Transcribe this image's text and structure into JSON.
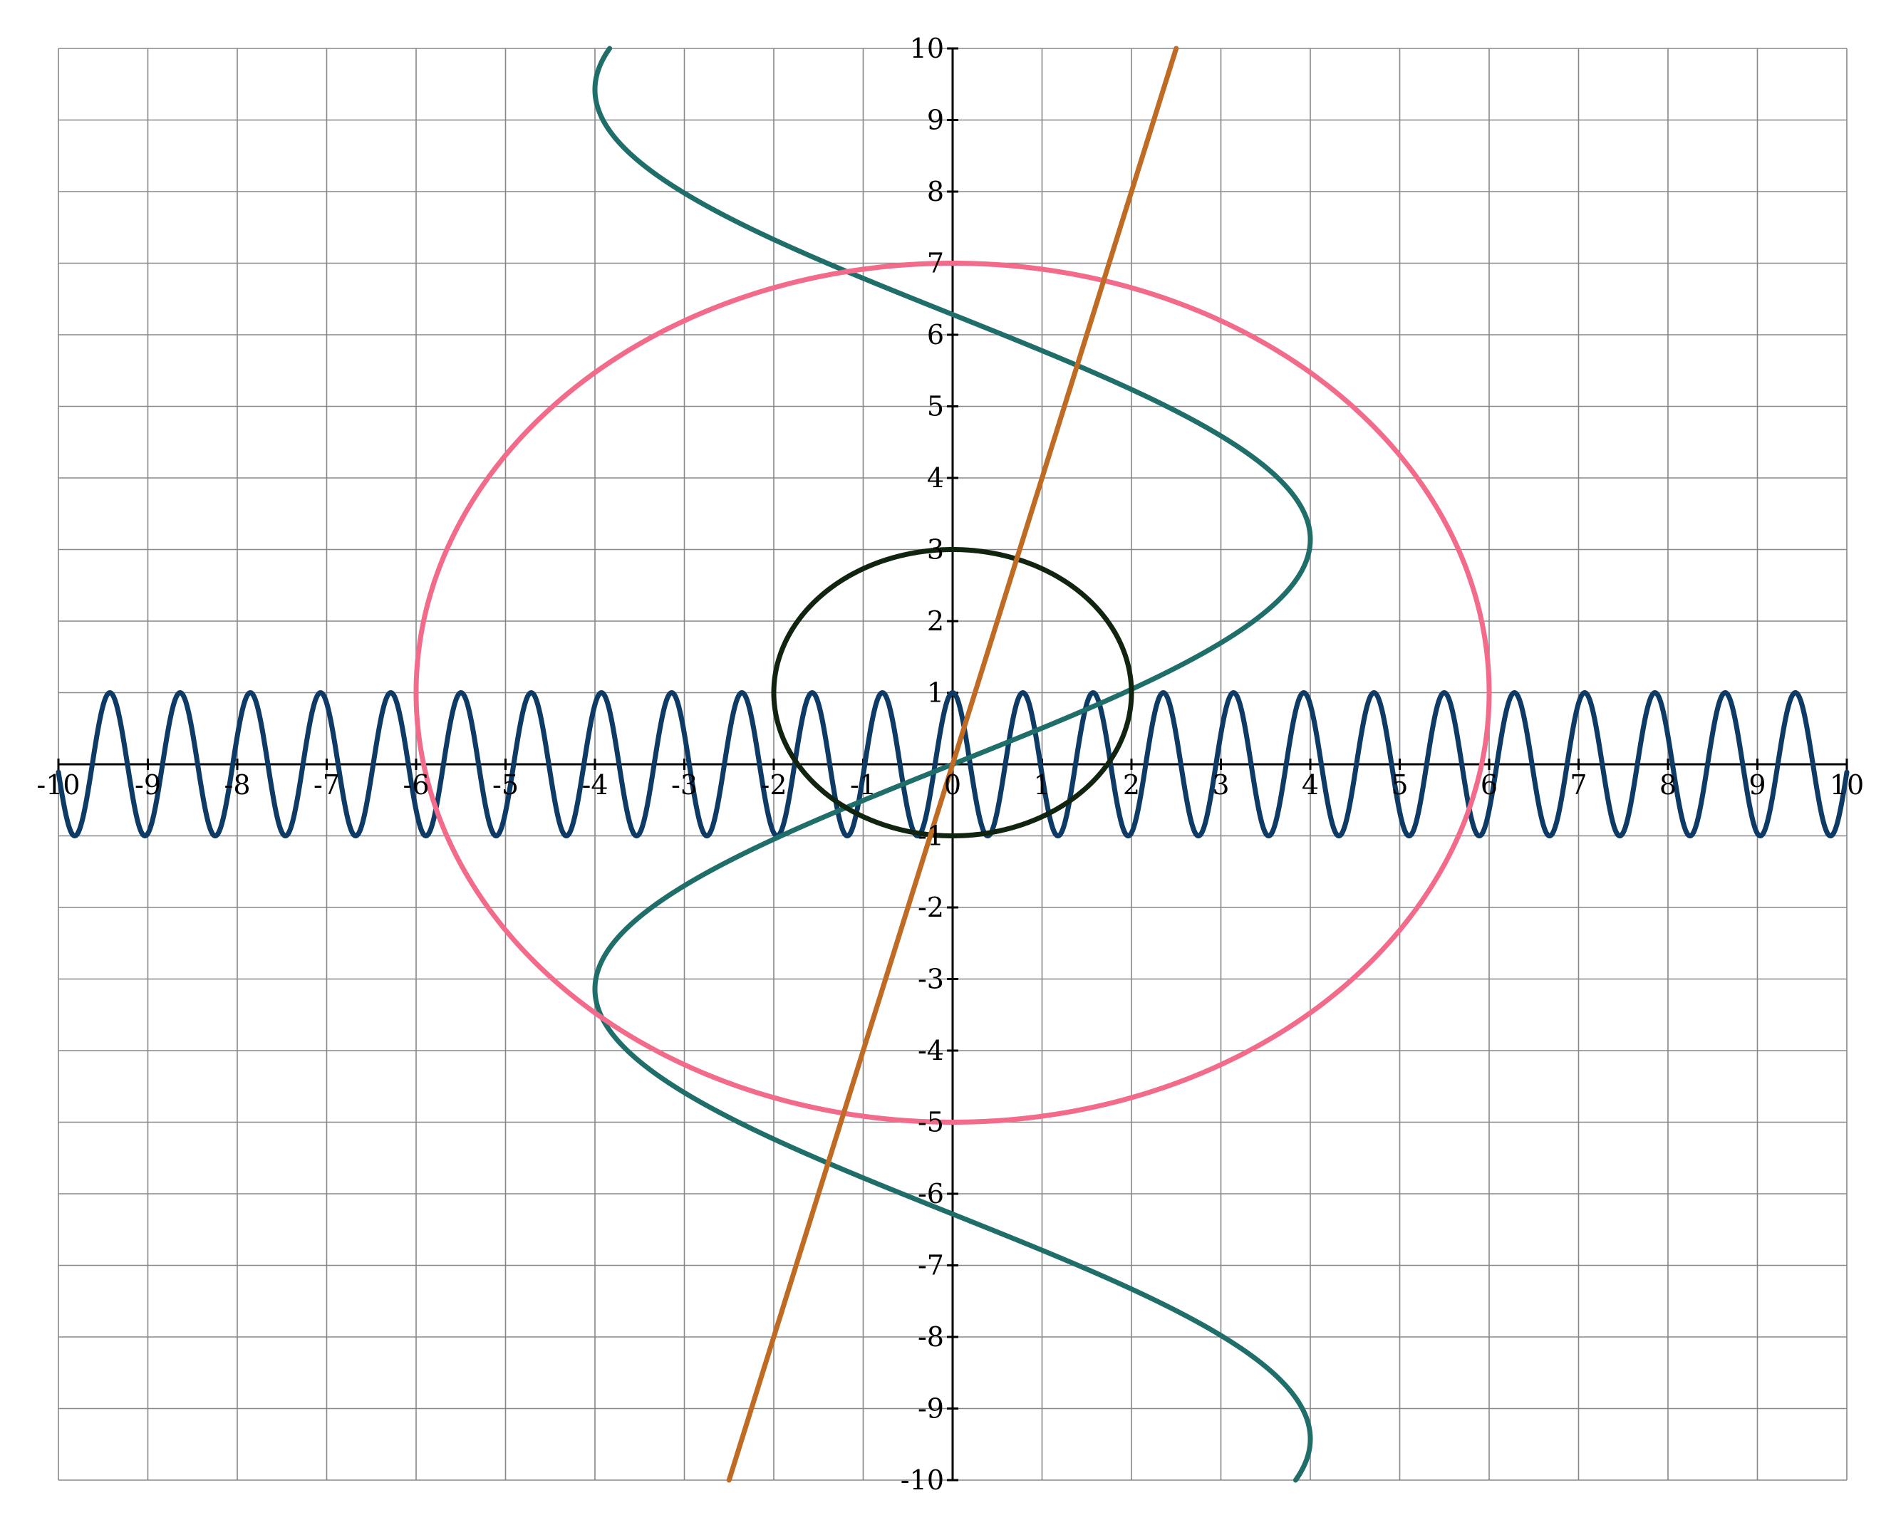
{
  "chart_data": {
    "type": "line",
    "title": "",
    "xlabel": "",
    "ylabel": "",
    "xlim": [
      -10,
      10
    ],
    "ylim": [
      -10,
      10
    ],
    "grid": true,
    "x_ticks": [
      "-10",
      "-9",
      "-8",
      "-7",
      "-6",
      "-5",
      "-4",
      "-3",
      "-2",
      "-1",
      "0",
      "1",
      "2",
      "3",
      "4",
      "5",
      "6",
      "7",
      "8",
      "9",
      "10"
    ],
    "y_ticks": [
      "-10",
      "-9",
      "-8",
      "-7",
      "-6",
      "-5",
      "-4",
      "-3",
      "-2",
      "-1",
      "0",
      "1",
      "2",
      "3",
      "4",
      "5",
      "6",
      "7",
      "8",
      "9",
      "10"
    ],
    "series": [
      {
        "kind": "function",
        "equation": "y = cos(8x)",
        "color": "#0d3b66",
        "x_range": [
          -10,
          10
        ]
      },
      {
        "kind": "inverse_function",
        "equation": "x = 4 sin(y/2)",
        "color": "#1f6e6a",
        "y_range": [
          -10,
          10
        ]
      },
      {
        "kind": "ellipse",
        "center": [
          0,
          1
        ],
        "radii": [
          6,
          6
        ],
        "color": "#f26b8a"
      },
      {
        "kind": "ellipse",
        "center": [
          0,
          1
        ],
        "radii": [
          2,
          2
        ],
        "color": "#102410"
      },
      {
        "kind": "function",
        "equation": "y = 4x",
        "color": "#c06b24",
        "x_range": [
          -2.5,
          2.5
        ]
      }
    ]
  }
}
